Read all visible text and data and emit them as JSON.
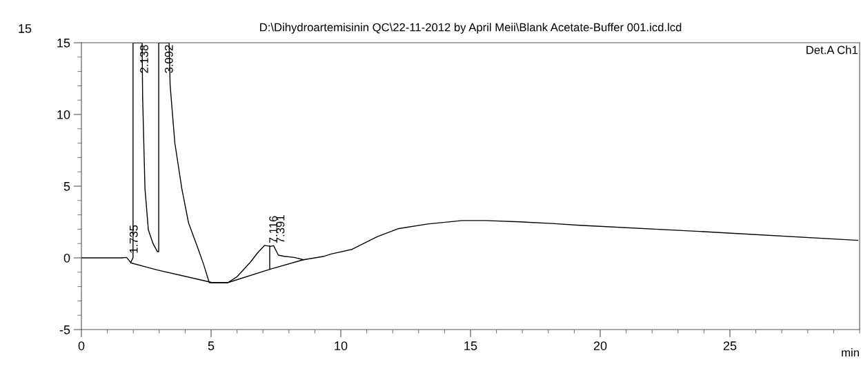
{
  "chart_data": {
    "type": "line",
    "title": "D:\\Dihydroartemisinin QC\\22-11-2012 by April Meii\\Blank Acetate-Buffer 001.icd.lcd",
    "xlabel": "min",
    "xlim": [
      0,
      30
    ],
    "ylim": [
      -5,
      15
    ],
    "xticks": [
      0,
      5,
      10,
      15,
      20,
      25
    ],
    "yticks": [
      -5,
      0,
      5,
      10,
      15
    ],
    "grid": false,
    "series": [
      {
        "color": "#000000",
        "x": [
          0,
          1.56,
          1.74,
          1.9,
          1.99,
          1.99,
          2.34,
          2.36,
          2.45,
          2.58,
          2.76,
          2.93,
          2.98,
          2.98,
          3.38,
          3.42,
          3.6,
          3.87,
          4.13,
          4.49,
          4.71,
          4.93,
          5.06,
          5.64,
          5.99,
          6.52,
          6.79,
          7.06,
          7.28,
          7.41,
          7.59,
          7.81,
          8.21,
          8.56,
          9.36,
          9.63,
          10.43,
          11.4,
          12.2,
          13.35,
          14.68,
          15.57,
          16.9,
          18.14,
          19.2,
          23.99,
          29.93
        ],
        "values": [
          0,
          0,
          0.03,
          -0.32,
          0,
          15,
          15,
          11.25,
          4.84,
          1.96,
          1.0,
          0.43,
          0.43,
          15,
          15,
          12.05,
          8.04,
          4.84,
          2.44,
          0.67,
          -0.45,
          -1.73,
          -1.73,
          -1.73,
          -1.33,
          -0.29,
          0.35,
          0.87,
          0.8,
          0.85,
          0.19,
          0.11,
          0.03,
          -0.13,
          0.11,
          0.27,
          0.59,
          1.47,
          2.03,
          2.36,
          2.6,
          2.6,
          2.51,
          2.4,
          2.27,
          1.83,
          1.22
        ]
      },
      {
        "color": "#000000",
        "x": [
          1.9,
          2.93,
          5.06,
          5.64,
          7.26,
          8.56
        ],
        "values": [
          -0.35,
          -0.85,
          -1.73,
          -1.73,
          -0.8,
          -0.13
        ]
      },
      {
        "color": "#000000",
        "x": [
          7.26,
          7.26
        ],
        "values": [
          -0.8,
          0.85
        ]
      }
    ],
    "annotations": [
      {
        "text": "1.735",
        "x": 1.735,
        "y": 0.3
      },
      {
        "text": "2.138",
        "x": 2.138,
        "y": 15
      },
      {
        "text": "3.092",
        "x": 3.092,
        "y": 15
      },
      {
        "text": "7.116",
        "x": 7.116,
        "y": 1.0
      },
      {
        "text": "7.391",
        "x": 7.391,
        "y": 1.0
      },
      "Det.A Ch1",
      "15"
    ]
  }
}
